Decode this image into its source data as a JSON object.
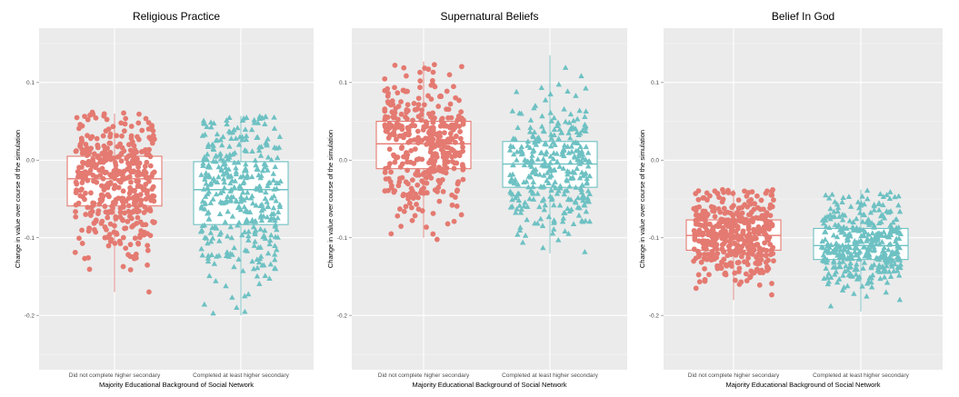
{
  "chart_data": [
    {
      "type": "boxplot",
      "title": "Religious Practice",
      "xlabel": "Majority Educational Background of Social Network",
      "ylabel": "Change in value over course of the simulation",
      "ylim": [
        -0.27,
        0.17
      ],
      "yticks": [
        -0.2,
        -0.1,
        0.0,
        0.1
      ],
      "ytick_labels": [
        "-0.2",
        "-0.1",
        "0.0",
        "0.1"
      ],
      "grid": true,
      "categories": [
        "Did not complete higher secondary",
        "Completed at least higher secondary"
      ],
      "boxes": [
        {
          "q1": -0.059,
          "median": -0.024,
          "q3": 0.005,
          "whisker_low": -0.17,
          "whisker_high": 0.06,
          "color": "#e47a71",
          "marker": "circle",
          "jitter_min": -0.175,
          "jitter_max": 0.062,
          "n_points": 420
        },
        {
          "q1": -0.083,
          "median": -0.038,
          "q3": -0.002,
          "whisker_low": -0.2,
          "whisker_high": 0.057,
          "color": "#6ec1c3",
          "marker": "triangle",
          "jitter_min": -0.2,
          "jitter_max": 0.057,
          "n_points": 380
        }
      ]
    },
    {
      "type": "boxplot",
      "title": "Supernatural Beliefs",
      "xlabel": "Majority Educational Background of Social Network",
      "ylabel": "Change in value over course of the simulation",
      "ylim": [
        -0.27,
        0.17
      ],
      "yticks": [
        -0.2,
        -0.1,
        0.0,
        0.1
      ],
      "ytick_labels": [
        "-0.2",
        "-0.1",
        "0.0",
        "0.1"
      ],
      "grid": true,
      "categories": [
        "Did not complete higher secondary",
        "Completed at least higher secondary"
      ],
      "boxes": [
        {
          "q1": -0.011,
          "median": 0.021,
          "q3": 0.05,
          "whisker_low": -0.1,
          "whisker_high": 0.127,
          "color": "#e47a71",
          "marker": "circle",
          "jitter_min": -0.105,
          "jitter_max": 0.127,
          "n_points": 380
        },
        {
          "q1": -0.035,
          "median": -0.005,
          "q3": 0.024,
          "whisker_low": -0.12,
          "whisker_high": 0.135,
          "color": "#6ec1c3",
          "marker": "triangle",
          "jitter_min": -0.12,
          "jitter_max": 0.135,
          "n_points": 330
        }
      ]
    },
    {
      "type": "boxplot",
      "title": "Belief In God",
      "xlabel": "Majority Educational Background of Social Network",
      "ylabel": "Change in value over course of the simulation",
      "ylim": [
        -0.27,
        0.17
      ],
      "yticks": [
        -0.2,
        -0.1,
        0.0,
        0.1
      ],
      "ytick_labels": [
        "-0.2",
        "-0.1",
        "0.0",
        "0.1"
      ],
      "grid": true,
      "categories": [
        "Did not complete higher secondary",
        "Completed at least higher secondary"
      ],
      "boxes": [
        {
          "q1": -0.116,
          "median": -0.097,
          "q3": -0.077,
          "whisker_low": -0.18,
          "whisker_high": -0.038,
          "color": "#e47a71",
          "marker": "circle",
          "jitter_min": -0.192,
          "jitter_max": -0.038,
          "n_points": 420
        },
        {
          "q1": -0.128,
          "median": -0.11,
          "q3": -0.088,
          "whisker_low": -0.195,
          "whisker_high": -0.038,
          "color": "#6ec1c3",
          "marker": "triangle",
          "jitter_min": -0.198,
          "jitter_max": -0.038,
          "n_points": 380
        }
      ]
    }
  ]
}
